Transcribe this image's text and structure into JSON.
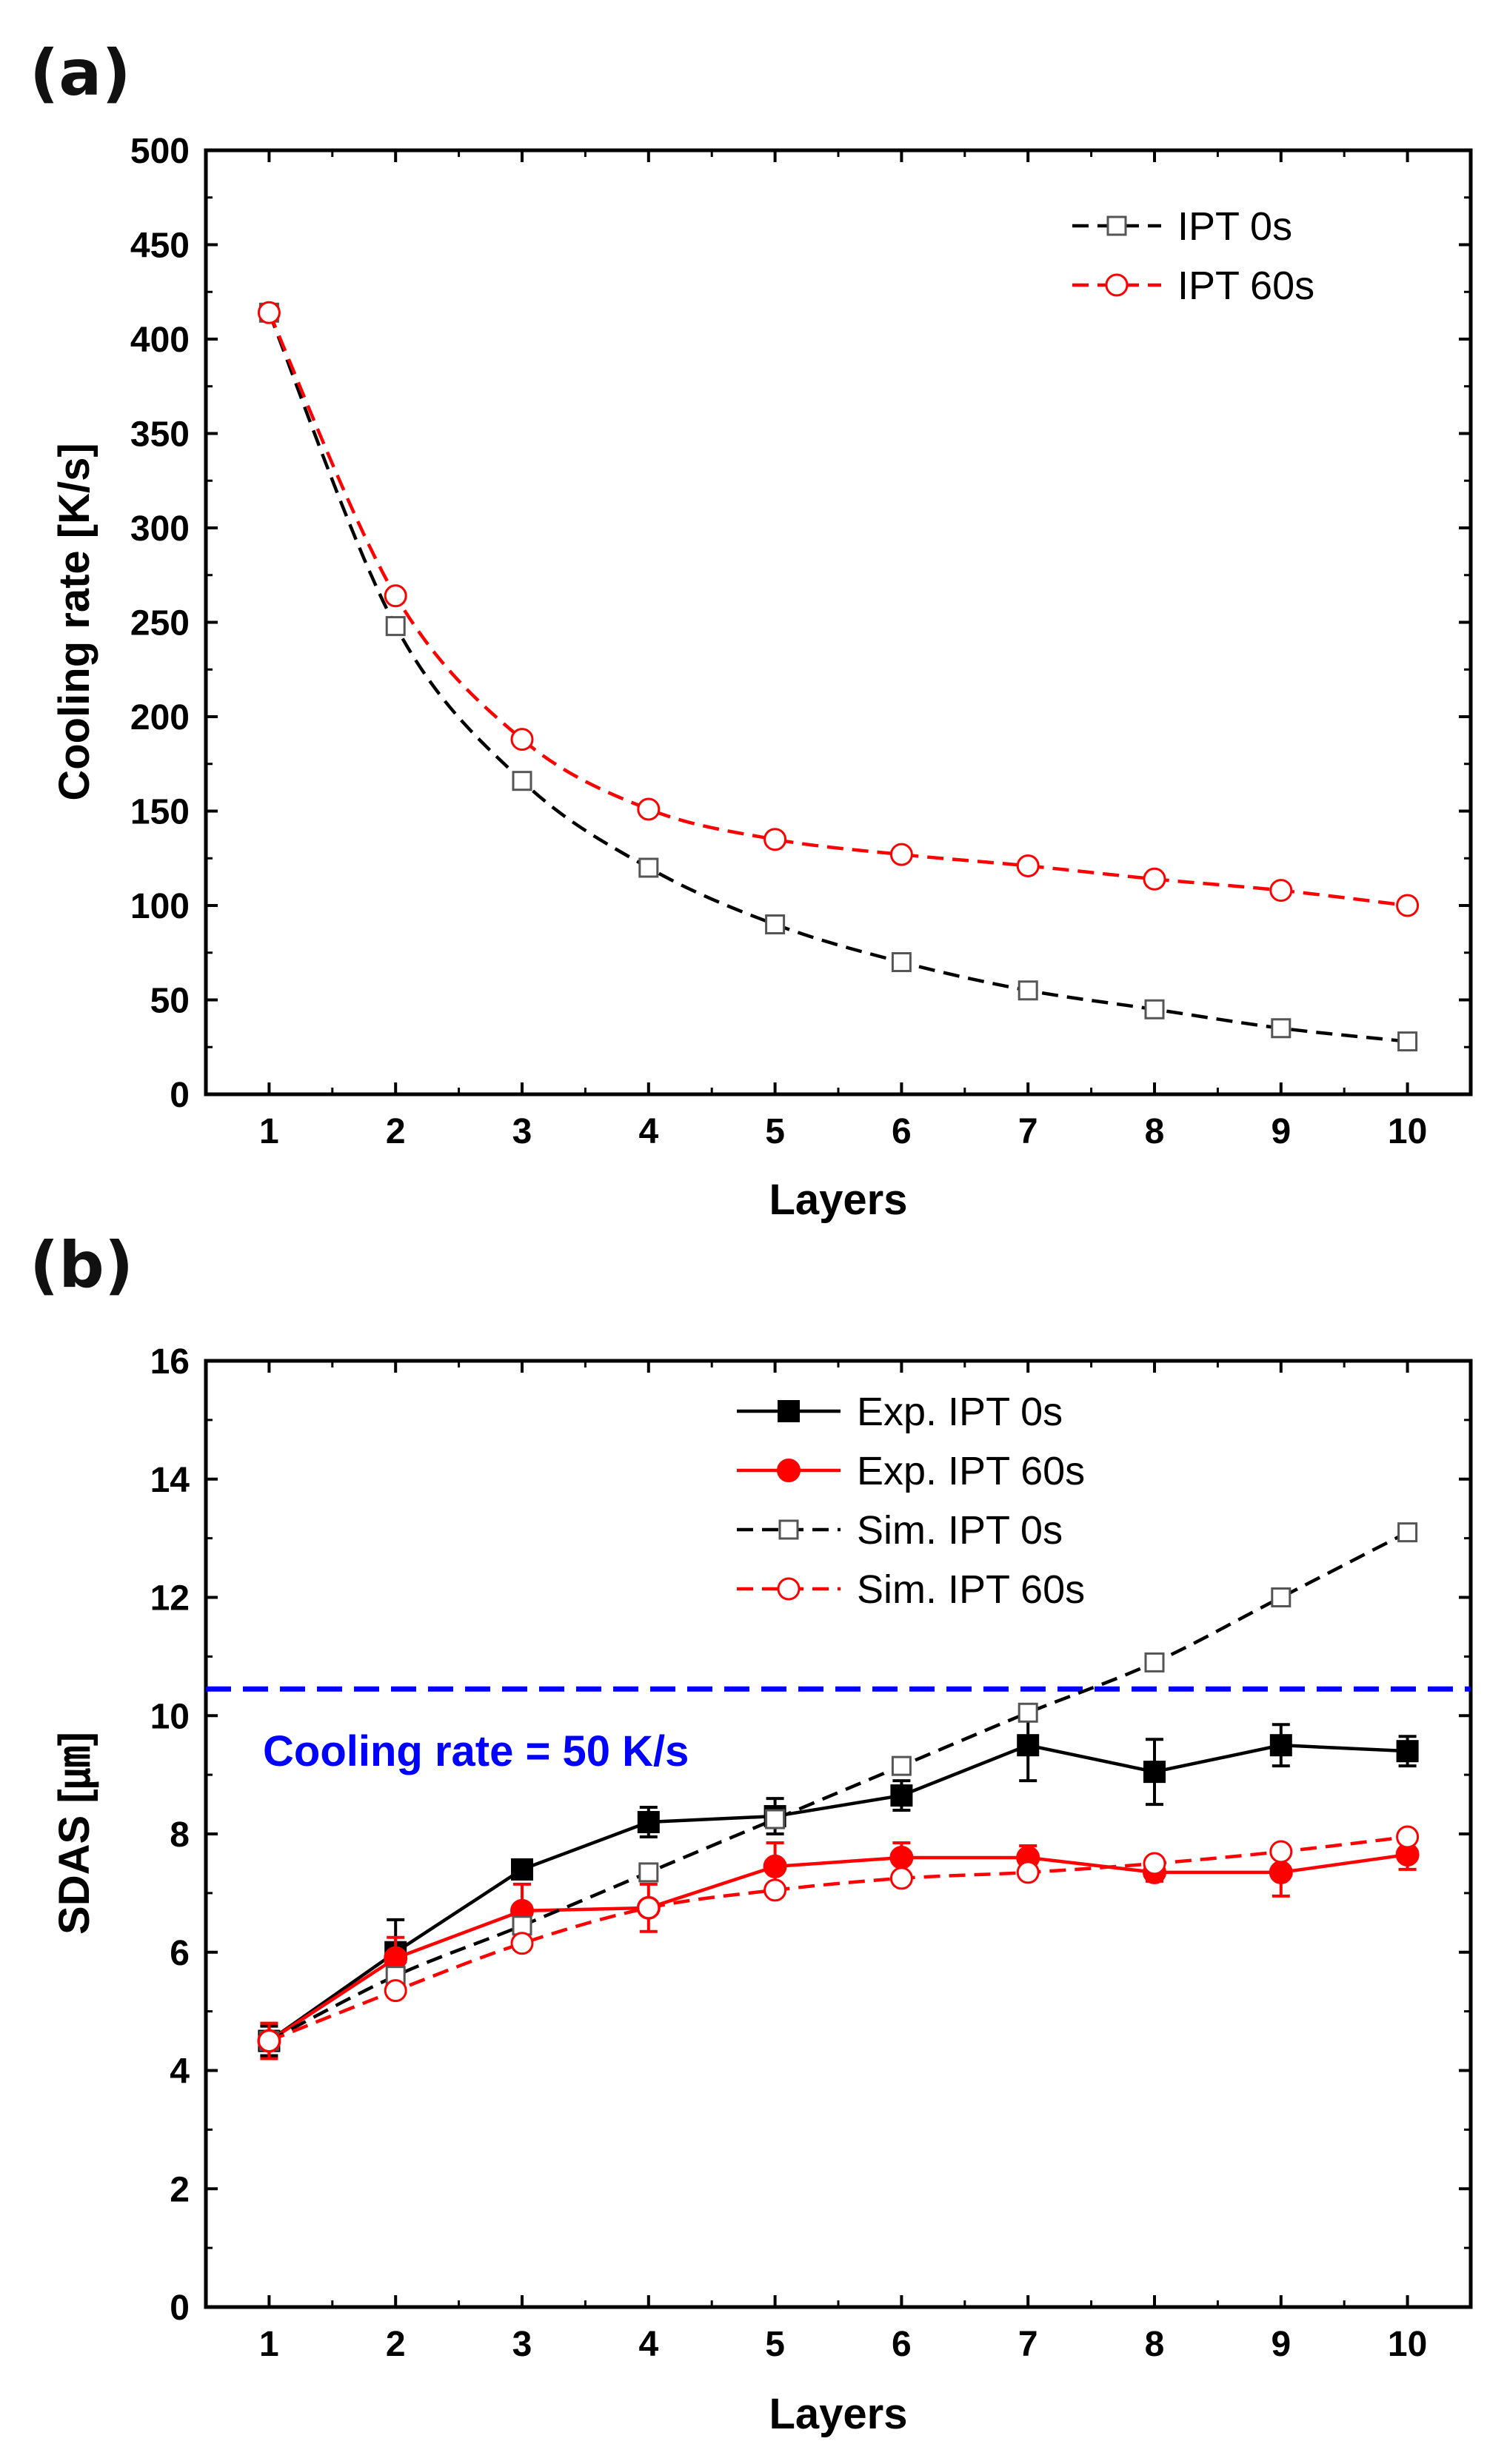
{
  "colors": {
    "black": "#000000",
    "red": "#ff0000",
    "blue": "#0000ff"
  },
  "chart_data": [
    {
      "panel": "(a)",
      "type": "line",
      "xlabel": "Layers",
      "ylabel": "Cooling rate [K/s]",
      "xlim": [
        0.5,
        10.5
      ],
      "ylim": [
        0,
        500
      ],
      "xticks": [
        1,
        2,
        3,
        4,
        5,
        6,
        7,
        8,
        9,
        10
      ],
      "yticks": [
        0,
        50,
        100,
        150,
        200,
        250,
        300,
        350,
        400,
        450,
        500
      ],
      "grid": false,
      "legend_position": "top-right",
      "x": [
        1,
        2,
        3,
        4,
        5,
        6,
        7,
        8,
        9,
        10
      ],
      "series": [
        {
          "name": "IPT 0s",
          "color": "#000000",
          "marker": "open-square",
          "line": "dashed",
          "values": [
            414,
            248,
            166,
            120,
            90,
            70,
            55,
            45,
            35,
            28
          ]
        },
        {
          "name": "IPT 60s",
          "color": "#ff0000",
          "marker": "open-circle",
          "line": "dashed",
          "values": [
            414,
            264,
            188,
            151,
            135,
            127,
            121,
            114,
            108,
            100
          ]
        }
      ]
    },
    {
      "panel": "(b)",
      "type": "line",
      "xlabel": "Layers",
      "ylabel": "SDAS [㎛]",
      "xlim": [
        0.5,
        10.5
      ],
      "ylim": [
        0,
        16
      ],
      "xticks": [
        1,
        2,
        3,
        4,
        5,
        6,
        7,
        8,
        9,
        10
      ],
      "yticks": [
        0,
        2,
        4,
        6,
        8,
        10,
        12,
        14,
        16
      ],
      "grid": false,
      "legend_position": "top-right",
      "x": [
        1,
        2,
        3,
        4,
        5,
        6,
        7,
        8,
        9,
        10
      ],
      "series": [
        {
          "name": "Exp. IPT 0s",
          "color": "#000000",
          "marker": "filled-square",
          "line": "solid",
          "values": [
            4.5,
            6.0,
            7.4,
            8.2,
            8.3,
            8.65,
            9.5,
            9.05,
            9.5,
            9.4
          ],
          "errors": [
            0.25,
            0.55,
            0.15,
            0.25,
            0.3,
            0.25,
            0.6,
            0.55,
            0.35,
            0.25
          ]
        },
        {
          "name": "Exp. IPT 60s",
          "color": "#ff0000",
          "marker": "filled-circle",
          "line": "solid",
          "values": [
            4.5,
            5.9,
            6.7,
            6.75,
            7.45,
            7.6,
            7.6,
            7.35,
            7.35,
            7.65
          ],
          "errors": [
            0.3,
            0.35,
            0.45,
            0.4,
            0.4,
            0.25,
            0.2,
            0.15,
            0.4,
            0.25
          ]
        },
        {
          "name": "Sim. IPT 0s",
          "color": "#000000",
          "marker": "open-square",
          "line": "dashed",
          "values": [
            4.5,
            5.6,
            6.45,
            7.35,
            8.25,
            9.15,
            10.05,
            10.9,
            12.0,
            13.1
          ]
        },
        {
          "name": "Sim. IPT 60s",
          "color": "#ff0000",
          "marker": "open-circle",
          "line": "dashed",
          "values": [
            4.5,
            5.35,
            6.15,
            6.75,
            7.05,
            7.25,
            7.35,
            7.5,
            7.7,
            7.95
          ]
        }
      ],
      "reference_line": {
        "y": 10.45,
        "color": "#0000ff",
        "line": "dashed",
        "label": "Cooling rate = 50 K/s"
      }
    }
  ]
}
